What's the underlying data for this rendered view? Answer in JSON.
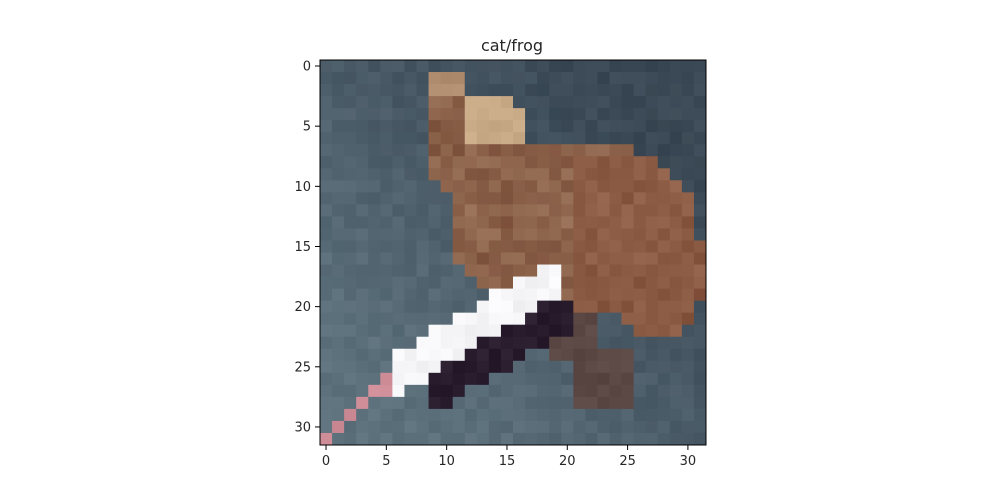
{
  "title": "cat/frog",
  "image": {
    "grid_size": 32,
    "description": "low-resolution 32x32 pixelated photo of a brown cat lying on a grey-blue surface next to a white and black object with a pink strap"
  },
  "axes": {
    "x_ticks": [
      "0",
      "5",
      "10",
      "15",
      "20",
      "25",
      "30"
    ],
    "y_ticks": [
      "0",
      "5",
      "10",
      "15",
      "20",
      "25",
      "30"
    ],
    "x_range": [
      -0.5,
      31.5
    ],
    "y_range": [
      -0.5,
      31.5
    ]
  }
}
